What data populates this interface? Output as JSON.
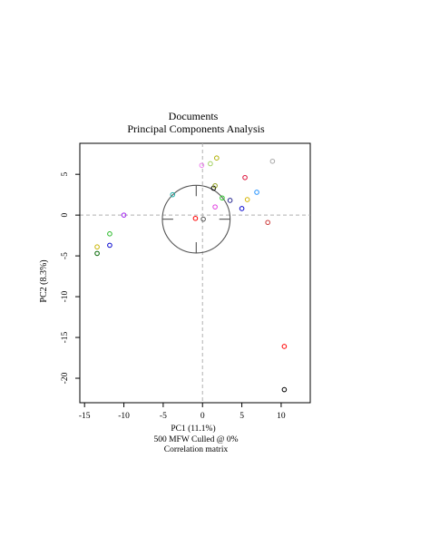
{
  "chart_data": {
    "type": "scatter",
    "title": "Documents",
    "subtitle": "Principal Components Analysis",
    "xlabel": "PC1 (11.1%)",
    "ylabel": "PC2 (8.3%)",
    "caption_lines": [
      "500 MFW  Culled @ 0%",
      "Correlation matrix"
    ],
    "xlim": [
      -15.6,
      13.7
    ],
    "ylim": [
      -23.0,
      8.8
    ],
    "x_ticks": [
      -15,
      -10,
      -5,
      0,
      5,
      10
    ],
    "y_ticks": [
      5,
      0,
      -5,
      -10,
      -15,
      -20
    ],
    "x_tick_labels": [
      "-15",
      "-10",
      "-5",
      "0",
      "5",
      "10"
    ],
    "y_tick_labels": [
      "5",
      "0",
      "-5",
      "-10",
      "-15",
      "-20"
    ],
    "reference_lines": {
      "x": 0,
      "y": 0,
      "style": "dashed",
      "color": "#b0b0b0"
    },
    "correlation_circle": {
      "center": [
        -0.8,
        -0.5
      ],
      "radius": 4.1,
      "color": "#555555"
    },
    "grid": false,
    "points": [
      {
        "x": -13.4,
        "y": -3.9,
        "color": "#c8b400"
      },
      {
        "x": -13.4,
        "y": -4.7,
        "color": "#006400"
      },
      {
        "x": -11.8,
        "y": -2.3,
        "color": "#22b822"
      },
      {
        "x": -11.8,
        "y": -3.7,
        "color": "#0000cd"
      },
      {
        "x": -10.0,
        "y": 0.0,
        "color": "#a020f0"
      },
      {
        "x": -3.8,
        "y": 2.5,
        "color": "#20b2aa"
      },
      {
        "x": -0.9,
        "y": -0.4,
        "color": "#ff0000"
      },
      {
        "x": -0.1,
        "y": 6.1,
        "color": "#ee82ee"
      },
      {
        "x": 0.1,
        "y": -0.5,
        "color": "#555555"
      },
      {
        "x": 1.0,
        "y": 6.3,
        "color": "#a0d060"
      },
      {
        "x": 1.4,
        "y": 3.3,
        "color": "#000000"
      },
      {
        "x": 1.6,
        "y": 3.6,
        "color": "#90a020"
      },
      {
        "x": 1.6,
        "y": 1.0,
        "color": "#e040e0"
      },
      {
        "x": 1.8,
        "y": 7.0,
        "color": "#b0b000"
      },
      {
        "x": 2.5,
        "y": 2.1,
        "color": "#32cd32"
      },
      {
        "x": 3.5,
        "y": 1.8,
        "color": "#1e1e8c"
      },
      {
        "x": 5.0,
        "y": 0.8,
        "color": "#0000cd"
      },
      {
        "x": 5.4,
        "y": 4.6,
        "color": "#dc143c"
      },
      {
        "x": 5.7,
        "y": 1.9,
        "color": "#d4b400"
      },
      {
        "x": 6.9,
        "y": 2.8,
        "color": "#1e90ff"
      },
      {
        "x": 8.3,
        "y": -0.9,
        "color": "#cd3c3c"
      },
      {
        "x": 8.9,
        "y": 6.6,
        "color": "#a9a9a9"
      },
      {
        "x": 10.4,
        "y": -16.1,
        "color": "#ff0000"
      },
      {
        "x": 10.4,
        "y": -21.4,
        "color": "#000000"
      }
    ]
  }
}
